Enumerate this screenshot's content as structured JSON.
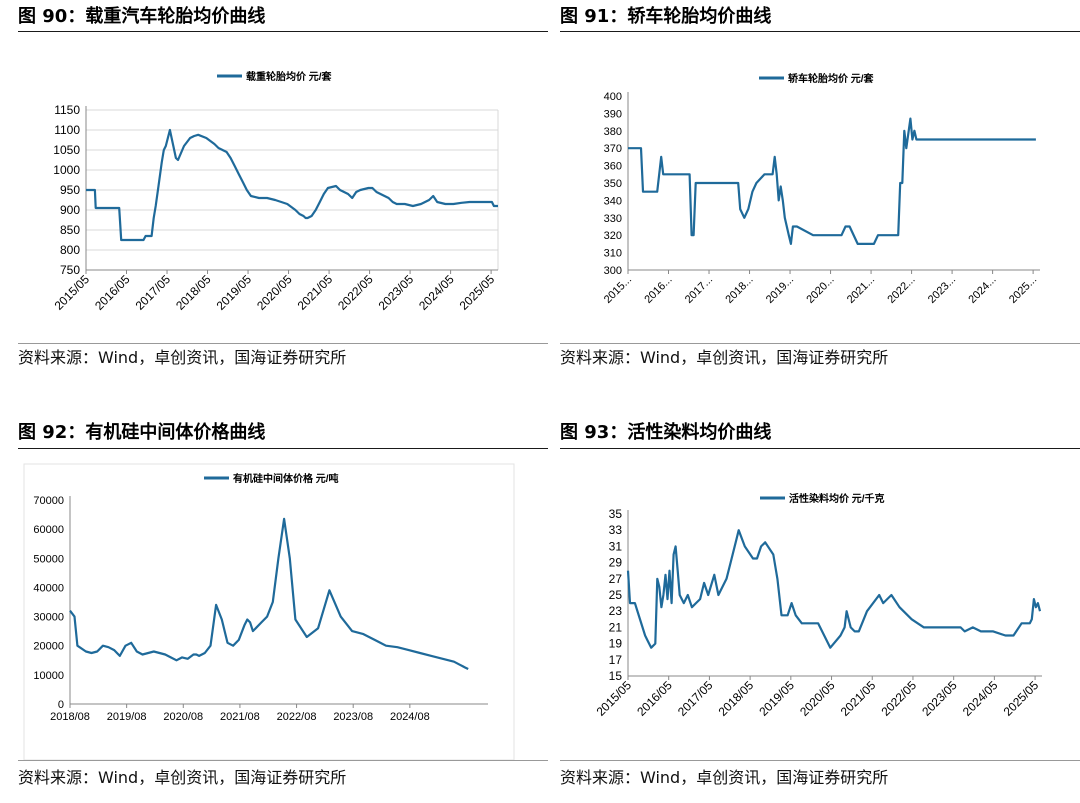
{
  "panels": [
    {
      "title": "图 90：载重汽车轮胎均价曲线",
      "source": "资料来源：Wind，卓创资讯，国海证券研究所"
    },
    {
      "title": "图 91：轿车轮胎均价曲线",
      "source": "资料来源：Wind，卓创资讯，国海证券研究所"
    },
    {
      "title": "图 92：有机硅中间体价格曲线",
      "source": "资料来源：Wind，卓创资讯，国海证券研究所"
    },
    {
      "title": "图 93：活性染料均价曲线",
      "source": "资料来源：Wind，卓创资讯，国海证券研究所"
    }
  ],
  "style": {
    "line_color": "#1f6a9a",
    "grid_color": "#d9d9d9",
    "axis_color": "#888888"
  },
  "chart_data": [
    {
      "type": "line",
      "legend": "载重轮胎均价  元/套",
      "legend_position": "top-center",
      "xlim": [
        2015.33,
        2025.5
      ],
      "ylim": [
        750,
        1150
      ],
      "yticks": [
        750,
        800,
        850,
        900,
        950,
        1000,
        1050,
        1100,
        1150
      ],
      "xtick_labels": [
        "2015/05",
        "2016/05",
        "2017/05",
        "2018/05",
        "2019/05",
        "2020/05",
        "2021/05",
        "2022/05",
        "2023/05",
        "2024/05",
        "2025/05"
      ],
      "xtick_values": [
        2015.33,
        2016.33,
        2017.33,
        2018.33,
        2019.33,
        2020.33,
        2021.33,
        2022.33,
        2023.33,
        2024.33,
        2025.33
      ],
      "xtick_rotate": true,
      "grid": true,
      "x": [
        2015.33,
        2015.55,
        2015.57,
        2016.15,
        2016.2,
        2016.75,
        2016.8,
        2016.95,
        2017.0,
        2017.05,
        2017.12,
        2017.2,
        2017.25,
        2017.3,
        2017.4,
        2017.55,
        2017.6,
        2017.75,
        2017.9,
        2018.0,
        2018.1,
        2018.3,
        2018.5,
        2018.6,
        2018.8,
        2018.9,
        2019.0,
        2019.1,
        2019.2,
        2019.3,
        2019.4,
        2019.6,
        2019.8,
        2020.0,
        2020.15,
        2020.3,
        2020.5,
        2020.6,
        2020.7,
        2020.75,
        2020.8,
        2020.9,
        2021.0,
        2021.1,
        2021.2,
        2021.3,
        2021.5,
        2021.6,
        2021.8,
        2021.9,
        2022.0,
        2022.1,
        2022.3,
        2022.4,
        2022.5,
        2022.6,
        2022.8,
        2022.9,
        2023.0,
        2023.2,
        2023.4,
        2023.6,
        2023.8,
        2023.9,
        2024.0,
        2024.2,
        2024.4,
        2024.6,
        2024.8,
        2025.0,
        2025.2,
        2025.35,
        2025.4,
        2025.5
      ],
      "y": [
        950,
        950,
        905,
        905,
        825,
        825,
        835,
        835,
        880,
        910,
        960,
        1020,
        1050,
        1060,
        1100,
        1030,
        1025,
        1060,
        1080,
        1085,
        1088,
        1080,
        1065,
        1055,
        1045,
        1030,
        1010,
        990,
        970,
        950,
        935,
        930,
        930,
        925,
        920,
        915,
        900,
        890,
        885,
        880,
        880,
        885,
        900,
        920,
        940,
        955,
        960,
        950,
        940,
        930,
        945,
        950,
        955,
        955,
        945,
        940,
        930,
        920,
        915,
        915,
        910,
        915,
        925,
        935,
        920,
        915,
        915,
        918,
        920,
        920,
        920,
        920,
        910,
        910
      ]
    },
    {
      "type": "line",
      "legend": "轿车轮胎均价  元/套",
      "legend_position": "top-center",
      "xlim": [
        2015.33,
        2025.5
      ],
      "ylim": [
        300,
        400
      ],
      "yticks": [
        300,
        310,
        320,
        330,
        340,
        350,
        360,
        370,
        380,
        390,
        400
      ],
      "xtick_labels": [
        "2015...",
        "2016...",
        "2017...",
        "2018...",
        "2019...",
        "2020...",
        "2021...",
        "2022...",
        "2023...",
        "2024...",
        "2025..."
      ],
      "xtick_values": [
        2015.33,
        2016.33,
        2017.33,
        2018.33,
        2019.33,
        2020.33,
        2021.33,
        2022.33,
        2023.33,
        2024.33,
        2025.33
      ],
      "xtick_rotate": true,
      "grid": false,
      "x": [
        2015.33,
        2015.65,
        2015.7,
        2016.05,
        2016.1,
        2016.15,
        2016.2,
        2016.8,
        2016.85,
        2016.9,
        2016.95,
        2017.0,
        2017.05,
        2018.05,
        2018.1,
        2018.2,
        2018.3,
        2018.4,
        2018.5,
        2018.7,
        2018.9,
        2018.95,
        2019.0,
        2019.05,
        2019.1,
        2019.15,
        2019.2,
        2019.3,
        2019.35,
        2019.4,
        2019.5,
        2019.9,
        2020.0,
        2020.2,
        2020.6,
        2020.7,
        2020.8,
        2021.0,
        2021.1,
        2021.4,
        2021.5,
        2021.8,
        2022.0,
        2022.05,
        2022.1,
        2022.15,
        2022.2,
        2022.3,
        2022.35,
        2022.4,
        2022.45,
        2022.5,
        2022.55,
        2022.6,
        2023.0,
        2024.0,
        2025.4
      ],
      "y": [
        370,
        370,
        345,
        345,
        355,
        365,
        355,
        355,
        355,
        320,
        320,
        350,
        350,
        350,
        335,
        330,
        335,
        345,
        350,
        355,
        355,
        365,
        355,
        340,
        348,
        340,
        330,
        320,
        315,
        325,
        325,
        320,
        320,
        320,
        320,
        325,
        325,
        315,
        315,
        315,
        320,
        320,
        320,
        350,
        350,
        380,
        370,
        387,
        375,
        380,
        375,
        375,
        375,
        375,
        375,
        375,
        375
      ]
    },
    {
      "type": "line",
      "legend": "有机硅中间体价格  元/吨",
      "legend_position": "top-center",
      "xlim": [
        2018.62,
        2026.0
      ],
      "ylim": [
        0,
        70000
      ],
      "yticks": [
        0,
        10000,
        20000,
        30000,
        40000,
        50000,
        60000,
        70000
      ],
      "xtick_labels": [
        "2018/08",
        "2019/08",
        "2020/08",
        "2021/08",
        "2022/08",
        "2023/08",
        "2024/08"
      ],
      "xtick_values": [
        2018.62,
        2019.62,
        2020.62,
        2021.62,
        2022.62,
        2023.62,
        2024.62
      ],
      "xtick_rotate": false,
      "grid": false,
      "x": [
        2018.62,
        2018.7,
        2018.75,
        2018.9,
        2019.0,
        2019.1,
        2019.2,
        2019.3,
        2019.4,
        2019.5,
        2019.6,
        2019.7,
        2019.8,
        2019.9,
        2020.0,
        2020.1,
        2020.2,
        2020.3,
        2020.4,
        2020.5,
        2020.6,
        2020.7,
        2020.8,
        2020.85,
        2020.9,
        2021.0,
        2021.1,
        2021.2,
        2021.3,
        2021.4,
        2021.5,
        2021.6,
        2021.7,
        2021.75,
        2021.8,
        2021.85,
        2021.9,
        2022.0,
        2022.1,
        2022.2,
        2022.3,
        2022.4,
        2022.5,
        2022.6,
        2022.8,
        2023.0,
        2023.2,
        2023.4,
        2023.6,
        2023.8,
        2024.0,
        2024.2,
        2024.4,
        2024.6,
        2024.8,
        2025.0,
        2025.2,
        2025.4,
        2025.5,
        2025.55,
        2025.6,
        2025.65
      ],
      "y": [
        32000,
        30000,
        20000,
        18000,
        17500,
        18000,
        20000,
        19500,
        18500,
        16500,
        20000,
        21000,
        18000,
        17000,
        17500,
        18000,
        17500,
        17000,
        16000,
        15000,
        16000,
        15500,
        17000,
        17000,
        16500,
        17500,
        20000,
        34000,
        29000,
        21000,
        20000,
        22000,
        27000,
        29000,
        28000,
        25000,
        26000,
        28000,
        30000,
        35000,
        50000,
        63500,
        50000,
        29000,
        23000,
        26000,
        39000,
        30000,
        25000,
        24000,
        22000,
        20000,
        19500,
        18500,
        17500,
        16500,
        15500,
        14500,
        13500,
        13000,
        12500,
        12000
      ]
    },
    {
      "type": "line",
      "legend": "活性染料均价  元/千克",
      "legend_position": "top-center",
      "xlim": [
        2015.33,
        2025.5
      ],
      "ylim": [
        15,
        35
      ],
      "yticks": [
        15,
        17,
        19,
        21,
        23,
        25,
        27,
        29,
        31,
        33,
        35
      ],
      "xtick_labels": [
        "2015/05",
        "2016/05",
        "2017/05",
        "2018/05",
        "2019/05",
        "2020/05",
        "2021/05",
        "2022/05",
        "2023/05",
        "2024/05",
        "2025/05"
      ],
      "xtick_values": [
        2015.33,
        2016.33,
        2017.33,
        2018.33,
        2019.33,
        2020.33,
        2021.33,
        2022.33,
        2023.33,
        2024.33,
        2025.33
      ],
      "xtick_rotate": true,
      "grid": false,
      "x": [
        2015.33,
        2015.38,
        2015.45,
        2015.5,
        2015.75,
        2015.8,
        2015.9,
        2016.0,
        2016.05,
        2016.1,
        2016.15,
        2016.2,
        2016.25,
        2016.3,
        2016.35,
        2016.4,
        2016.45,
        2016.5,
        2016.55,
        2016.6,
        2016.7,
        2016.8,
        2016.9,
        2017.0,
        2017.1,
        2017.2,
        2017.3,
        2017.45,
        2017.55,
        2017.75,
        2017.85,
        2018.0,
        2018.05,
        2018.2,
        2018.4,
        2018.5,
        2018.6,
        2018.7,
        2018.9,
        2019.0,
        2019.1,
        2019.25,
        2019.35,
        2019.45,
        2019.6,
        2019.8,
        2020.0,
        2020.3,
        2020.55,
        2020.65,
        2020.7,
        2020.8,
        2020.9,
        2021.0,
        2021.2,
        2021.5,
        2021.6,
        2021.8,
        2022.0,
        2022.3,
        2022.6,
        2023.0,
        2023.2,
        2023.5,
        2023.6,
        2023.8,
        2024.0,
        2024.3,
        2024.6,
        2024.8,
        2025.0,
        2025.2,
        2025.25,
        2025.3,
        2025.35,
        2025.4,
        2025.45
      ],
      "y": [
        28,
        24,
        24,
        24,
        20,
        19.5,
        18.5,
        19,
        27,
        26,
        23.5,
        25,
        27.5,
        24.5,
        28,
        24,
        30,
        31,
        28,
        25,
        24,
        25,
        23.5,
        24,
        24.5,
        26.5,
        25,
        27.5,
        25,
        27,
        29,
        32,
        33,
        31,
        29.5,
        29.5,
        31,
        31.5,
        30,
        27,
        22.5,
        22.5,
        24,
        22.5,
        21.5,
        21.5,
        21.5,
        18.5,
        20,
        21,
        23,
        21,
        20.5,
        20.5,
        23,
        25,
        24,
        25,
        23.5,
        22,
        21,
        21,
        21,
        21,
        20.5,
        21,
        20.5,
        20.5,
        20,
        20,
        21.5,
        21.5,
        22,
        24.5,
        23.5,
        24,
        23
      ]
    }
  ]
}
